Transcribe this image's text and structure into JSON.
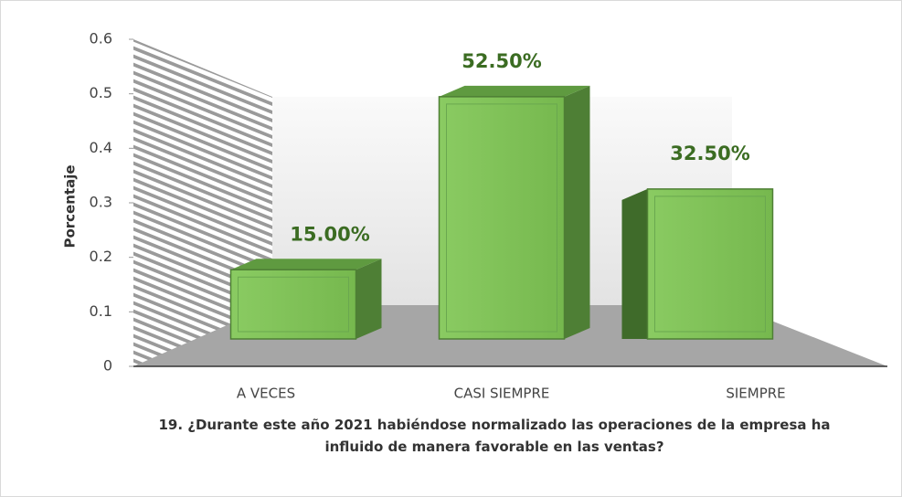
{
  "chart_data": {
    "type": "bar3d",
    "title": "19. ¿Durante este año 2021 habiéndose normalizado las operaciones de la empresa ha influido de manera favorable en las ventas?",
    "ylabel": "Porcentaje",
    "categories": [
      "A VECES",
      "CASI SIEMPRE",
      "SIEMPRE"
    ],
    "values": [
      0.15,
      0.525,
      0.325
    ],
    "value_labels": [
      "15.00%",
      "52.50%",
      "32.50%"
    ],
    "color": "#70ad47",
    "ylim": [
      0,
      0.6
    ],
    "yticks": [
      0,
      0.1,
      0.2,
      0.3,
      0.4,
      0.5,
      0.6
    ]
  }
}
